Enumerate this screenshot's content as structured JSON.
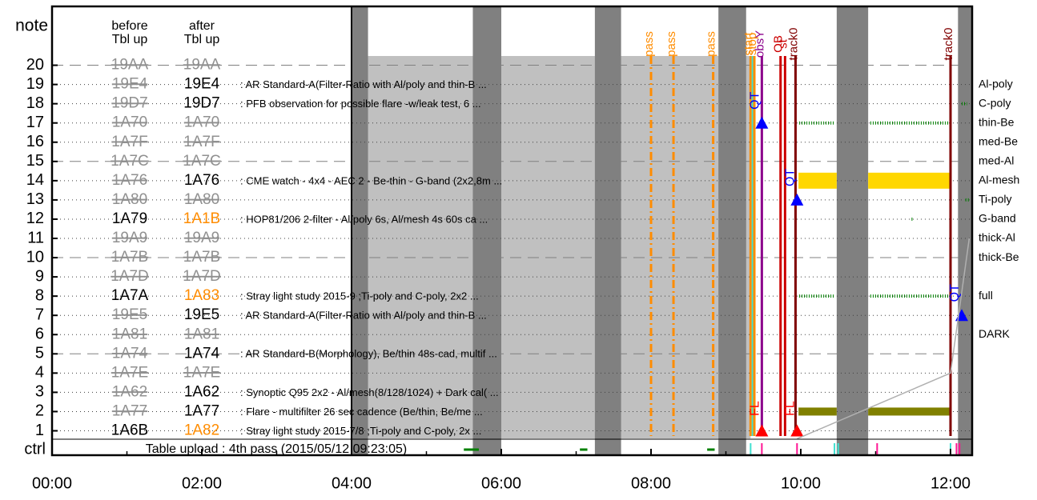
{
  "chart_data": {
    "type": "timeline",
    "x_axis": {
      "ticks": [
        "00:00",
        "02:00",
        "04:00",
        "06:00",
        "08:00",
        "10:00",
        "12:00"
      ],
      "range_hours": [
        0,
        12.3
      ]
    },
    "y_axis": {
      "header": "note",
      "rows": [
        1,
        2,
        3,
        4,
        5,
        6,
        7,
        8,
        9,
        10,
        11,
        12,
        13,
        14,
        15,
        16,
        17,
        18,
        19,
        20
      ],
      "ctrl_label": "ctrl"
    },
    "column_headers": {
      "before": [
        "before",
        "Tbl up"
      ],
      "after": [
        "after",
        "Tbl up"
      ]
    },
    "tables": [
      {
        "row": 20,
        "before": "19AA",
        "after": "19AA",
        "before_style": "struck",
        "after_style": "struck",
        "desc": ""
      },
      {
        "row": 19,
        "before": "19E4",
        "after": "19E4",
        "before_style": "struck",
        "after_style": "black",
        "desc": ": AR Standard-A(Filter-Ratio with Al/poly and thin-B ..."
      },
      {
        "row": 18,
        "before": "19D7",
        "after": "19D7",
        "before_style": "struck",
        "after_style": "black",
        "desc": ": PFB observation for possible flare -w/leak test, 6 ..."
      },
      {
        "row": 17,
        "before": "1A70",
        "after": "1A70",
        "before_style": "struck",
        "after_style": "struck",
        "desc": ""
      },
      {
        "row": 16,
        "before": "1A7F",
        "after": "1A7F",
        "before_style": "struck",
        "after_style": "struck",
        "desc": ""
      },
      {
        "row": 15,
        "before": "1A7C",
        "after": "1A7C",
        "before_style": "struck",
        "after_style": "struck",
        "desc": ""
      },
      {
        "row": 14,
        "before": "1A76",
        "after": "1A76",
        "before_style": "struck",
        "after_style": "black",
        "desc": ": CME watch - 4x4 - AEC 2 - Be-thin - G-band (2x2,8m ..."
      },
      {
        "row": 13,
        "before": "1A80",
        "after": "1A80",
        "before_style": "struck",
        "after_style": "struck",
        "desc": ""
      },
      {
        "row": 12,
        "before": "1A79",
        "after": "1A1B",
        "before_style": "black",
        "after_style": "orange",
        "desc": ": HOP81/206 2-filter - Al/poly 6s, Al/mesh 4s 60s ca ..."
      },
      {
        "row": 11,
        "before": "19A9",
        "after": "19A9",
        "before_style": "struck",
        "after_style": "struck",
        "desc": ""
      },
      {
        "row": 10,
        "before": "1A7B",
        "after": "1A7B",
        "before_style": "struck",
        "after_style": "struck",
        "desc": ""
      },
      {
        "row": 9,
        "before": "1A7D",
        "after": "1A7D",
        "before_style": "struck",
        "after_style": "struck",
        "desc": ""
      },
      {
        "row": 8,
        "before": "1A7A",
        "after": "1A83",
        "before_style": "black",
        "after_style": "orange",
        "desc": ": Stray light study 2015-9 ;Ti-poly and C-poly, 2x2 ..."
      },
      {
        "row": 7,
        "before": "19E5",
        "after": "19E5",
        "before_style": "struck",
        "after_style": "black",
        "desc": ": AR Standard-A(Filter-Ratio with Al/poly and thin-B ..."
      },
      {
        "row": 6,
        "before": "1A81",
        "after": "1A81",
        "before_style": "struck",
        "after_style": "struck",
        "desc": ""
      },
      {
        "row": 5,
        "before": "1A74",
        "after": "1A74",
        "before_style": "struck",
        "after_style": "black",
        "desc": ": AR Standard-B(Morphology), Be/thin 48s-cad, multif ..."
      },
      {
        "row": 4,
        "before": "1A7E",
        "after": "1A7E",
        "before_style": "struck",
        "after_style": "struck",
        "desc": ""
      },
      {
        "row": 3,
        "before": "1A62",
        "after": "1A62",
        "before_style": "struck",
        "after_style": "black",
        "desc": ": Synoptic Q95 2x2 - Al/mesh(8/128/1024) + Dark cal( ..."
      },
      {
        "row": 2,
        "before": "1A77",
        "after": "1A77",
        "before_style": "struck",
        "after_style": "black",
        "desc": ": Flare - multifilter 26 sec cadence (Be/thin, Be/me ..."
      },
      {
        "row": 1,
        "before": "1A6B",
        "after": "1A82",
        "before_style": "black",
        "after_style": "orange",
        "desc": ": Stray light study 2015-7/8 ;Ti-poly and C-poly, 2x ..."
      }
    ],
    "table_upload_text": "Table upload : 4th pass (2015/05/12 09:23:05)",
    "filters": [
      {
        "row": 19,
        "label": "Al-poly"
      },
      {
        "row": 18,
        "label": "C-poly"
      },
      {
        "row": 17,
        "label": "thin-Be"
      },
      {
        "row": 16,
        "label": "med-Be"
      },
      {
        "row": 15,
        "label": "med-Al"
      },
      {
        "row": 14,
        "label": "Al-mesh"
      },
      {
        "row": 13,
        "label": "Ti-poly"
      },
      {
        "row": 12,
        "label": "G-band"
      },
      {
        "row": 11,
        "label": "thick-Al"
      },
      {
        "row": 10,
        "label": "thick-Be"
      },
      {
        "row": 8,
        "label": "full"
      },
      {
        "row": 6,
        "label": "DARK"
      }
    ],
    "night_bands_hours": [
      [
        4.0,
        4.22
      ],
      [
        5.62,
        6.0
      ],
      [
        7.25,
        7.6
      ],
      [
        8.9,
        9.27
      ],
      [
        10.48,
        10.9
      ],
      [
        12.1,
        12.3
      ]
    ],
    "gray_region_hours": [
      4.0,
      9.33
    ],
    "pass_lines": [
      {
        "t": 8.0,
        "label": "pass"
      },
      {
        "t": 8.3,
        "label": "pass"
      },
      {
        "t": 8.83,
        "label": "pass"
      }
    ],
    "event_lines": [
      {
        "t": 9.33,
        "label": "start",
        "color": "#ff8c00"
      },
      {
        "t": 9.36,
        "label": "",
        "color": "#40e0d0"
      },
      {
        "t": 9.38,
        "label": "stop",
        "color": "#ff8c00"
      },
      {
        "t": 9.48,
        "label": "obsY",
        "color": "#8b008b"
      },
      {
        "t": 9.73,
        "label": "OB",
        "color": "#cc0000"
      },
      {
        "t": 9.79,
        "label": "st",
        "color": "#cc0000"
      },
      {
        "t": 9.93,
        "label": "track0",
        "color": "#800000"
      },
      {
        "t": 12.0,
        "label": "track0",
        "color": "#800000"
      }
    ],
    "markers": [
      {
        "t": 9.48,
        "row": 17,
        "label": "QT",
        "type": "triangle",
        "color": "#0000ff"
      },
      {
        "t": 9.95,
        "row": 13,
        "label": "QT",
        "type": "triangle",
        "color": "#0000ff"
      },
      {
        "t": 12.15,
        "row": 7,
        "label": "QT",
        "type": "triangle",
        "color": "#0000ff"
      },
      {
        "t": 9.48,
        "row": 1,
        "label": "FL",
        "type": "triangle",
        "color": "#ff0000"
      },
      {
        "t": 9.95,
        "row": 1,
        "label": "FL",
        "type": "triangle",
        "color": "#ff0000"
      }
    ],
    "yellow_bars": [
      {
        "row": 14,
        "start": 9.97,
        "end": 10.48
      },
      {
        "row": 14,
        "start": 10.9,
        "end": 12.0
      }
    ],
    "olive_bars": [
      {
        "row": 2,
        "start": 9.97,
        "end": 10.48
      },
      {
        "row": 2,
        "start": 10.9,
        "end": 12.0
      }
    ],
    "green_ticks": [
      {
        "row": 17,
        "start": 9.98,
        "end": 10.45
      },
      {
        "row": 17,
        "start": 10.93,
        "end": 12.0
      },
      {
        "row": 8,
        "start": 9.98,
        "end": 10.45
      },
      {
        "row": 8,
        "start": 10.93,
        "end": 12.0
      },
      {
        "row": 18,
        "start": 12.15,
        "end": 12.22
      },
      {
        "row": 12,
        "start": 11.48,
        "end": 11.5
      },
      {
        "row": 13,
        "start": 12.2,
        "end": 12.25
      }
    ],
    "ctrl_segments": [
      {
        "start": 5.5,
        "end": 5.7
      },
      {
        "start": 7.05,
        "end": 7.15
      },
      {
        "start": 8.75,
        "end": 8.85
      }
    ],
    "ctrl_ticks": [
      {
        "t": 9.33,
        "color": "#40e0d0"
      },
      {
        "t": 9.48,
        "color": "#ff1493"
      },
      {
        "t": 9.95,
        "color": "#ff1493"
      },
      {
        "t": 10.45,
        "color": "#40e0d0"
      },
      {
        "t": 10.5,
        "color": "#40e0d0"
      },
      {
        "t": 11.02,
        "color": "#ff1493"
      },
      {
        "t": 12.0,
        "color": "#40e0d0"
      },
      {
        "t": 12.08,
        "color": "#ff1493"
      },
      {
        "t": 12.12,
        "color": "#ff1493"
      }
    ],
    "colors": {
      "night": "#808080",
      "gray_region": "#c0c0c0",
      "pass_line": "#ff8c00",
      "struck": "#909090",
      "orange_text": "#ff8c00",
      "yellow_bar": "#ffd700",
      "olive_bar": "#808000",
      "green": "#008000",
      "track": "#800000"
    }
  }
}
